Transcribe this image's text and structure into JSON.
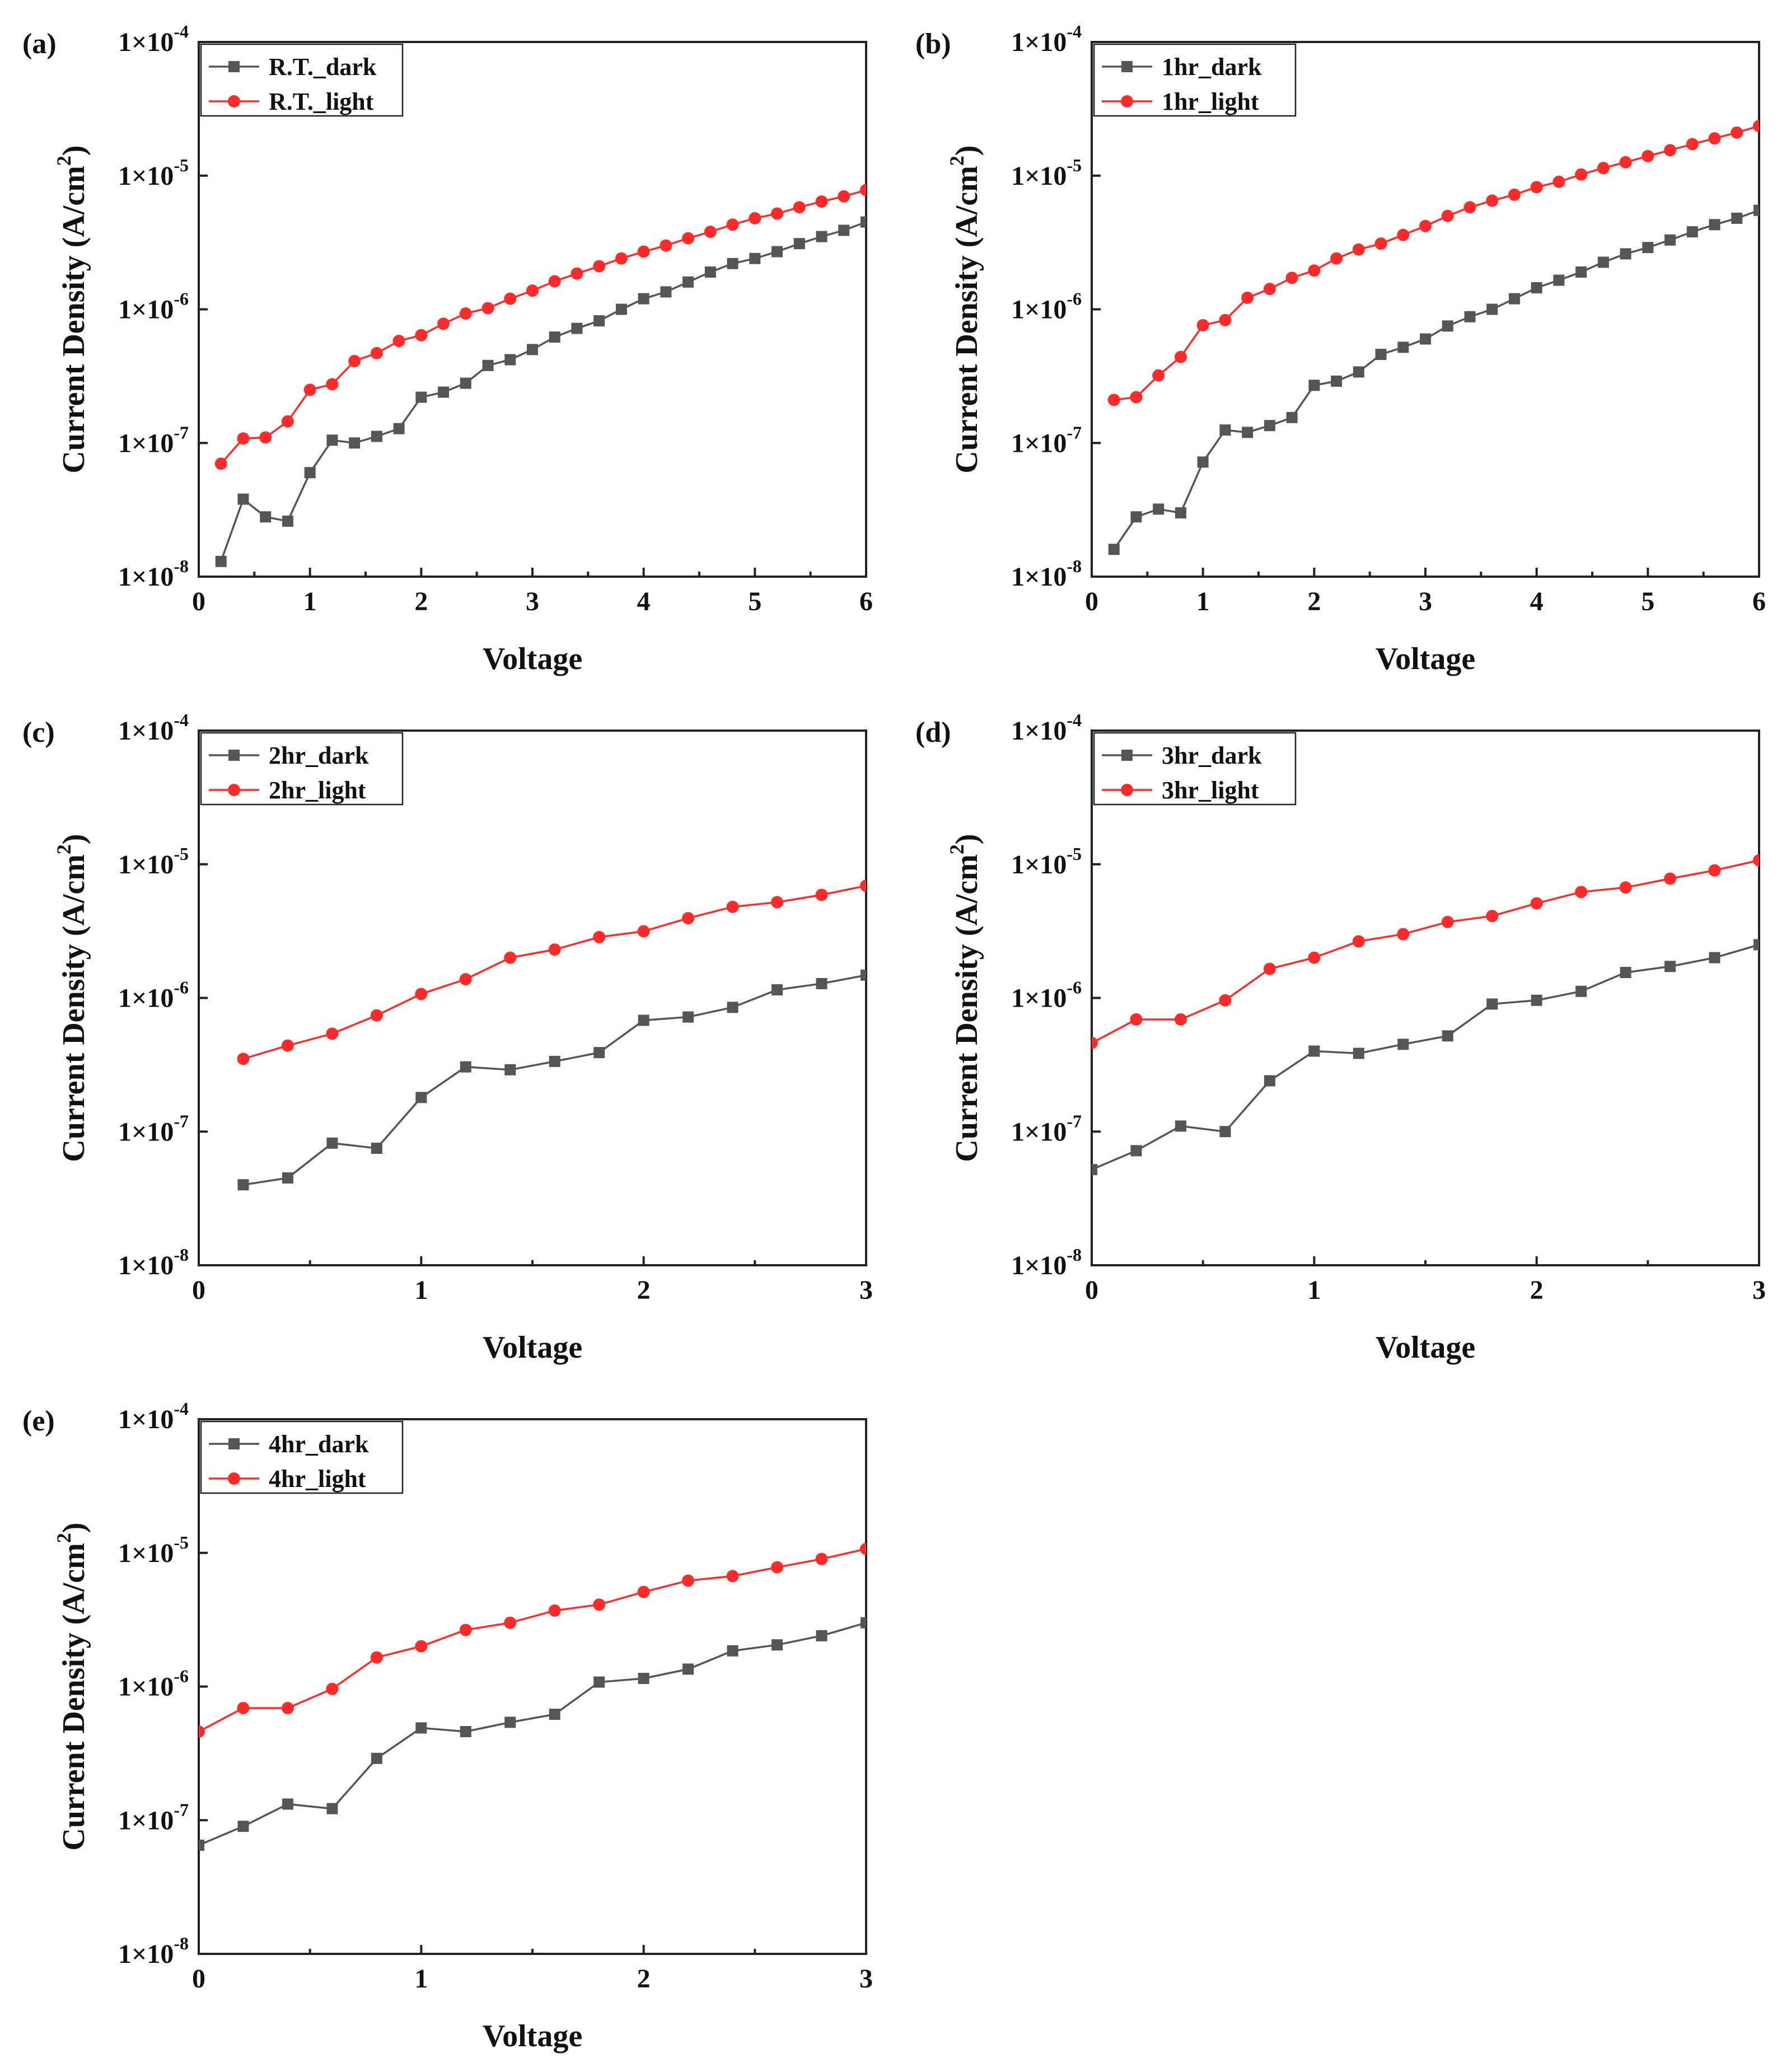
{
  "chart_data": [
    {
      "type": "line",
      "panel_label": "(a)",
      "xlabel": "Voltage",
      "ylabel": "Current Density (A/cm²)",
      "yscale": "log",
      "xlim": [
        0,
        6
      ],
      "ylim": [
        1e-08,
        0.0001
      ],
      "x_ticks": [
        "0",
        "1",
        "2",
        "3",
        "4",
        "5",
        "6"
      ],
      "y_ticks": [
        {
          "m": "1×10",
          "e": "-8"
        },
        {
          "m": "1×10",
          "e": "-7"
        },
        {
          "m": "1×10",
          "e": "-6"
        },
        {
          "m": "1×10",
          "e": "-5"
        },
        {
          "m": "1×10",
          "e": "-4"
        }
      ],
      "legend_position": "top-left",
      "series": [
        {
          "name": "R.T._dark",
          "color": "#555555",
          "marker": "square",
          "x": [
            0.2,
            0.4,
            0.6,
            0.8,
            1.0,
            1.2,
            1.4,
            1.6,
            1.8,
            2.0,
            2.2,
            2.4,
            2.6,
            2.8,
            3.0,
            3.2,
            3.4,
            3.6,
            3.8,
            4.0,
            4.2,
            4.4,
            4.6,
            4.8,
            5.0,
            5.2,
            5.4,
            5.6,
            5.8,
            6.0
          ],
          "y": [
            1.3e-08,
            3.8e-08,
            2.8e-08,
            2.6e-08,
            6e-08,
            1.05e-07,
            1e-07,
            1.12e-07,
            1.28e-07,
            2.2e-07,
            2.4e-07,
            2.8e-07,
            3.8e-07,
            4.2e-07,
            5e-07,
            6.2e-07,
            7.2e-07,
            8.2e-07,
            1e-06,
            1.2e-06,
            1.35e-06,
            1.6e-06,
            1.9e-06,
            2.2e-06,
            2.4e-06,
            2.7e-06,
            3.1e-06,
            3.5e-06,
            3.9e-06,
            4.5e-06
          ]
        },
        {
          "name": "R.T._light",
          "color": "#ff2b2b",
          "marker": "circle",
          "x": [
            0.2,
            0.4,
            0.6,
            0.8,
            1.0,
            1.2,
            1.4,
            1.6,
            1.8,
            2.0,
            2.2,
            2.4,
            2.6,
            2.8,
            3.0,
            3.2,
            3.4,
            3.6,
            3.8,
            4.0,
            4.2,
            4.4,
            4.6,
            4.8,
            5.0,
            5.2,
            5.4,
            5.6,
            5.8,
            6.0
          ],
          "y": [
            7e-08,
            1.08e-07,
            1.1e-07,
            1.45e-07,
            2.5e-07,
            2.75e-07,
            4.1e-07,
            4.7e-07,
            5.8e-07,
            6.4e-07,
            7.8e-07,
            9.3e-07,
            1.02e-06,
            1.2e-06,
            1.38e-06,
            1.62e-06,
            1.85e-06,
            2.1e-06,
            2.4e-06,
            2.7e-06,
            3e-06,
            3.4e-06,
            3.8e-06,
            4.3e-06,
            4.8e-06,
            5.2e-06,
            5.8e-06,
            6.4e-06,
            7e-06,
            7.8e-06
          ]
        }
      ]
    },
    {
      "type": "line",
      "panel_label": "(b)",
      "xlabel": "Voltage",
      "ylabel": "Current Density (A/cm²)",
      "yscale": "log",
      "xlim": [
        0,
        6
      ],
      "ylim": [
        1e-08,
        0.0001
      ],
      "x_ticks": [
        "0",
        "1",
        "2",
        "3",
        "4",
        "5",
        "6"
      ],
      "y_ticks": [
        {
          "m": "1×10",
          "e": "-8"
        },
        {
          "m": "1×10",
          "e": "-7"
        },
        {
          "m": "1×10",
          "e": "-6"
        },
        {
          "m": "1×10",
          "e": "-5"
        },
        {
          "m": "1×10",
          "e": "-4"
        }
      ],
      "legend_position": "top-left",
      "series": [
        {
          "name": "1hr_dark",
          "color": "#555555",
          "marker": "square",
          "x": [
            0.2,
            0.4,
            0.6,
            0.8,
            1.0,
            1.2,
            1.4,
            1.6,
            1.8,
            2.0,
            2.2,
            2.4,
            2.6,
            2.8,
            3.0,
            3.2,
            3.4,
            3.6,
            3.8,
            4.0,
            4.2,
            4.4,
            4.6,
            4.8,
            5.0,
            5.2,
            5.4,
            5.6,
            5.8,
            6.0
          ],
          "y": [
            1.6e-08,
            2.8e-08,
            3.2e-08,
            3e-08,
            7.2e-08,
            1.25e-07,
            1.2e-07,
            1.35e-07,
            1.55e-07,
            2.7e-07,
            2.9e-07,
            3.4e-07,
            4.6e-07,
            5.2e-07,
            6e-07,
            7.5e-07,
            8.8e-07,
            1e-06,
            1.2e-06,
            1.45e-06,
            1.65e-06,
            1.9e-06,
            2.25e-06,
            2.6e-06,
            2.9e-06,
            3.3e-06,
            3.8e-06,
            4.3e-06,
            4.8e-06,
            5.5e-06
          ]
        },
        {
          "name": "1hr_light",
          "color": "#ff2b2b",
          "marker": "circle",
          "x": [
            0.2,
            0.4,
            0.6,
            0.8,
            1.0,
            1.2,
            1.4,
            1.6,
            1.8,
            2.0,
            2.2,
            2.4,
            2.6,
            2.8,
            3.0,
            3.2,
            3.4,
            3.6,
            3.8,
            4.0,
            4.2,
            4.4,
            4.6,
            4.8,
            5.0,
            5.2,
            5.4,
            5.6,
            5.8,
            6.0
          ],
          "y": [
            2.1e-07,
            2.2e-07,
            3.2e-07,
            4.4e-07,
            7.6e-07,
            8.3e-07,
            1.22e-06,
            1.42e-06,
            1.72e-06,
            1.95e-06,
            2.4e-06,
            2.8e-06,
            3.1e-06,
            3.6e-06,
            4.2e-06,
            5e-06,
            5.8e-06,
            6.5e-06,
            7.2e-06,
            8.2e-06,
            9e-06,
            1.02e-05,
            1.14e-05,
            1.26e-05,
            1.4e-05,
            1.55e-05,
            1.72e-05,
            1.9e-05,
            2.1e-05,
            2.35e-05
          ]
        }
      ]
    },
    {
      "type": "line",
      "panel_label": "(c)",
      "xlabel": "Voltage",
      "ylabel": "Current Density (A/cm²)",
      "yscale": "log",
      "xlim": [
        0,
        3
      ],
      "ylim": [
        1e-08,
        0.0001
      ],
      "x_ticks": [
        "0",
        "1",
        "2",
        "3"
      ],
      "y_ticks": [
        {
          "m": "1×10",
          "e": "-8"
        },
        {
          "m": "1×10",
          "e": "-7"
        },
        {
          "m": "1×10",
          "e": "-6"
        },
        {
          "m": "1×10",
          "e": "-5"
        },
        {
          "m": "1×10",
          "e": "-4"
        }
      ],
      "legend_position": "top-left",
      "series": [
        {
          "name": "2hr_dark",
          "color": "#555555",
          "marker": "square",
          "x": [
            0.2,
            0.4,
            0.6,
            0.8,
            1.0,
            1.2,
            1.4,
            1.6,
            1.8,
            2.0,
            2.2,
            2.4,
            2.6,
            2.8,
            3.0
          ],
          "y": [
            4e-08,
            4.5e-08,
            8.2e-08,
            7.5e-08,
            1.8e-07,
            3.05e-07,
            2.9e-07,
            3.35e-07,
            3.9e-07,
            6.8e-07,
            7.2e-07,
            8.5e-07,
            1.15e-06,
            1.28e-06,
            1.48e-06
          ]
        },
        {
          "name": "2hr_light",
          "color": "#ff2b2b",
          "marker": "circle",
          "x": [
            0.2,
            0.4,
            0.6,
            0.8,
            1.0,
            1.2,
            1.4,
            1.6,
            1.8,
            2.0,
            2.2,
            2.4,
            2.6,
            2.8,
            3.0
          ],
          "y": [
            3.5e-07,
            4.4e-07,
            5.4e-07,
            7.4e-07,
            1.07e-06,
            1.38e-06,
            2e-06,
            2.3e-06,
            2.85e-06,
            3.15e-06,
            3.95e-06,
            4.8e-06,
            5.2e-06,
            5.9e-06,
            6.9e-06
          ]
        }
      ]
    },
    {
      "type": "line",
      "panel_label": "(d)",
      "xlabel": "Voltage",
      "ylabel": "Current Density (A/cm²)",
      "yscale": "log",
      "xlim": [
        0,
        3
      ],
      "ylim": [
        1e-08,
        0.0001
      ],
      "x_ticks": [
        "0",
        "1",
        "2",
        "3"
      ],
      "y_ticks": [
        {
          "m": "1×10",
          "e": "-8"
        },
        {
          "m": "1×10",
          "e": "-7"
        },
        {
          "m": "1×10",
          "e": "-6"
        },
        {
          "m": "1×10",
          "e": "-5"
        },
        {
          "m": "1×10",
          "e": "-4"
        }
      ],
      "legend_position": "top-left",
      "series": [
        {
          "name": "3hr_dark",
          "color": "#555555",
          "marker": "square",
          "x": [
            0.0,
            0.2,
            0.4,
            0.6,
            0.8,
            1.0,
            1.2,
            1.4,
            1.6,
            1.8,
            2.0,
            2.2,
            2.4,
            2.6,
            2.8,
            3.0
          ],
          "y": [
            5.2e-08,
            7.2e-08,
            1.1e-07,
            1e-07,
            2.4e-07,
            4e-07,
            3.85e-07,
            4.5e-07,
            5.2e-07,
            9e-07,
            9.6e-07,
            1.12e-06,
            1.55e-06,
            1.72e-06,
            2e-06,
            2.5e-06
          ]
        },
        {
          "name": "3hr_light",
          "color": "#ff2b2b",
          "marker": "circle",
          "x": [
            0.0,
            0.2,
            0.4,
            0.6,
            0.8,
            1.0,
            1.2,
            1.4,
            1.6,
            1.8,
            2.0,
            2.2,
            2.4,
            2.6,
            2.8,
            3.0
          ],
          "y": [
            4.6e-07,
            6.9e-07,
            6.9e-07,
            9.6e-07,
            1.65e-06,
            2e-06,
            2.65e-06,
            3e-06,
            3.7e-06,
            4.1e-06,
            5.1e-06,
            6.2e-06,
            6.7e-06,
            7.8e-06,
            9e-06,
            1.07e-05
          ]
        }
      ]
    },
    {
      "type": "line",
      "panel_label": "(e)",
      "xlabel": "Voltage",
      "ylabel": "Current Density (A/cm²)",
      "yscale": "log",
      "xlim": [
        0,
        3
      ],
      "ylim": [
        1e-08,
        0.0001
      ],
      "x_ticks": [
        "0",
        "1",
        "2",
        "3"
      ],
      "y_ticks": [
        {
          "m": "1×10",
          "e": "-8"
        },
        {
          "m": "1×10",
          "e": "-7"
        },
        {
          "m": "1×10",
          "e": "-6"
        },
        {
          "m": "1×10",
          "e": "-5"
        },
        {
          "m": "1×10",
          "e": "-4"
        }
      ],
      "legend_position": "top-left",
      "series": [
        {
          "name": "4hr_dark",
          "color": "#555555",
          "marker": "square",
          "x": [
            0.0,
            0.2,
            0.4,
            0.6,
            0.8,
            1.0,
            1.2,
            1.4,
            1.6,
            1.8,
            2.0,
            2.2,
            2.4,
            2.6,
            2.8,
            3.0
          ],
          "y": [
            6.5e-08,
            9e-08,
            1.32e-07,
            1.22e-07,
            2.9e-07,
            4.9e-07,
            4.6e-07,
            5.4e-07,
            6.2e-07,
            1.08e-06,
            1.15e-06,
            1.35e-06,
            1.85e-06,
            2.05e-06,
            2.4e-06,
            3e-06
          ]
        },
        {
          "name": "4hr_light",
          "color": "#ff2b2b",
          "marker": "circle",
          "x": [
            0.0,
            0.2,
            0.4,
            0.6,
            0.8,
            1.0,
            1.2,
            1.4,
            1.6,
            1.8,
            2.0,
            2.2,
            2.4,
            2.6,
            2.8,
            3.0
          ],
          "y": [
            4.6e-07,
            6.9e-07,
            6.9e-07,
            9.6e-07,
            1.65e-06,
            2e-06,
            2.65e-06,
            3e-06,
            3.7e-06,
            4.1e-06,
            5.1e-06,
            6.2e-06,
            6.7e-06,
            7.8e-06,
            9e-06,
            1.07e-05
          ]
        }
      ]
    }
  ]
}
